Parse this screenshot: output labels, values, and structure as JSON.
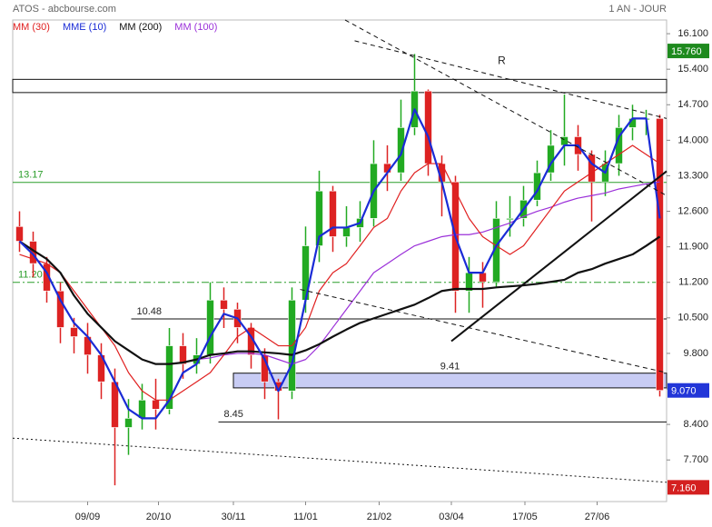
{
  "chart_data": {
    "type": "candlestick",
    "title": "ATOS - abcbourse.com",
    "subtitle": "1 AN - JOUR",
    "xlim": [
      -0.5,
      47.5
    ],
    "xticks": [
      {
        "value": 5,
        "label": "09/09"
      },
      {
        "value": 10.2,
        "label": "20/10"
      },
      {
        "value": 15.7,
        "label": "30/11"
      },
      {
        "value": 21,
        "label": "11/01"
      },
      {
        "value": 26.4,
        "label": "21/02"
      },
      {
        "value": 31.7,
        "label": "03/04"
      },
      {
        "value": 37.1,
        "label": "17/05"
      },
      {
        "value": 42.4,
        "label": "27/06"
      }
    ],
    "ylim": [
      6.88,
      16.37
    ],
    "yticks": [
      {
        "value": 16.1,
        "label": "16.100"
      },
      {
        "value": 15.4,
        "label": "15.400"
      },
      {
        "value": 14.7,
        "label": "14.700"
      },
      {
        "value": 14,
        "label": "14.000"
      },
      {
        "value": 13.3,
        "label": "13.300"
      },
      {
        "value": 12.6,
        "label": "12.600"
      },
      {
        "value": 11.9,
        "label": "11.900"
      },
      {
        "value": 11.2,
        "label": "11.200"
      },
      {
        "value": 10.5,
        "label": "10.500"
      },
      {
        "value": 9.8,
        "label": "9.800"
      },
      {
        "value": 9.1,
        "label": "9.100"
      },
      {
        "value": 8.4,
        "label": "8.400"
      },
      {
        "value": 7.7,
        "label": "7.700"
      }
    ],
    "up_color": "#22aa22",
    "down_color": "#dd2222",
    "open": [
      12.3,
      12.01,
      11.57,
      11.03,
      10.31,
      10.13,
      9.77,
      9.24,
      8.34,
      8.52,
      8.88,
      8.7,
      9.95,
      9.59,
      9.77,
      10.85,
      10.67,
      10.31,
      9.77,
      9.24,
      9.06,
      10.85,
      11.92,
      13.0,
      12.1,
      12.28,
      12.46,
      13.54,
      13.36,
      14.25,
      14.97,
      13.54,
      13.18,
      11.03,
      11.39,
      11.21,
      12.46,
      12.46,
      12.82,
      13.36,
      13.9,
      14.07,
      13.72,
      13.18,
      13.54,
      14.25,
      14.43,
      14.43
    ],
    "high": [
      12.6,
      12.2,
      11.7,
      11.2,
      10.5,
      10.4,
      10.0,
      9.5,
      8.9,
      9.2,
      9.3,
      10.3,
      10.2,
      10.1,
      11.2,
      11.1,
      10.8,
      10.4,
      9.9,
      9.3,
      11.1,
      12.3,
      13.4,
      13.1,
      12.7,
      12.8,
      14.0,
      13.9,
      14.8,
      15.7,
      15.0,
      13.7,
      13.3,
      11.7,
      11.6,
      12.8,
      12.9,
      13.1,
      13.6,
      14.2,
      14.9,
      14.3,
      13.8,
      13.8,
      14.5,
      14.7,
      14.6,
      14.5
    ],
    "low": [
      11.8,
      11.3,
      10.8,
      10.0,
      9.8,
      9.4,
      8.9,
      7.2,
      7.8,
      8.3,
      8.3,
      8.6,
      9.3,
      9.4,
      9.6,
      10.3,
      10.0,
      9.5,
      8.9,
      8.5,
      8.9,
      10.6,
      11.6,
      11.8,
      11.9,
      12.0,
      12.3,
      13.0,
      13.2,
      14.1,
      13.3,
      12.5,
      10.6,
      10.6,
      10.7,
      11.1,
      12.1,
      12.3,
      12.7,
      13.2,
      13.5,
      13.4,
      12.4,
      12.9,
      13.3,
      14.0,
      14.1,
      8.95
    ],
    "close": [
      12.01,
      11.57,
      11.03,
      10.31,
      10.13,
      9.77,
      9.24,
      8.34,
      8.52,
      8.88,
      8.7,
      9.95,
      9.59,
      9.77,
      10.85,
      10.67,
      10.31,
      9.77,
      9.24,
      9.06,
      10.85,
      11.92,
      13.0,
      12.1,
      12.28,
      12.46,
      13.54,
      13.36,
      14.25,
      14.97,
      13.54,
      13.18,
      11.03,
      11.39,
      11.21,
      12.46,
      12.46,
      12.82,
      13.36,
      13.9,
      14.07,
      13.72,
      13.18,
      13.54,
      14.25,
      14.43,
      14.43,
      9.07
    ],
    "series": [
      {
        "name": "MM (30)",
        "color": "#e02020",
        "width": 1.2,
        "values": [
          11.75,
          11.66,
          11.57,
          11.39,
          11.03,
          10.67,
          10.31,
          9.95,
          9.42,
          9.06,
          8.88,
          8.88,
          9.06,
          9.24,
          9.42,
          9.77,
          10.13,
          10.31,
          10.13,
          9.95,
          9.95,
          10.31,
          11.03,
          11.39,
          11.57,
          11.92,
          12.28,
          12.46,
          13.0,
          13.36,
          13.54,
          13.54,
          13.0,
          12.46,
          12.1,
          11.92,
          11.75,
          11.92,
          12.28,
          12.64,
          13.0,
          13.18,
          13.36,
          13.54,
          13.72,
          13.9,
          13.72,
          13.54
        ]
      },
      {
        "name": "MME (10)",
        "color": "#1a2bd6",
        "width": 2.2,
        "values": [
          12.01,
          11.75,
          11.39,
          10.85,
          10.4,
          10.13,
          9.77,
          9.24,
          8.7,
          8.52,
          8.52,
          8.88,
          9.42,
          9.59,
          10.13,
          10.58,
          10.49,
          10.13,
          9.68,
          9.06,
          9.59,
          10.85,
          12.1,
          12.28,
          12.28,
          12.37,
          13.0,
          13.36,
          13.72,
          14.61,
          14.07,
          13.18,
          12.1,
          11.39,
          11.39,
          11.92,
          12.28,
          12.64,
          13.0,
          13.54,
          13.9,
          13.9,
          13.54,
          13.36,
          14.07,
          14.43,
          14.43,
          12.46
        ]
      },
      {
        "name": "MM (200)",
        "color": "#111111",
        "width": 2.2,
        "values": [
          12.01,
          11.83,
          11.66,
          11.39,
          10.94,
          10.58,
          10.31,
          10.04,
          9.86,
          9.68,
          9.59,
          9.59,
          9.62,
          9.68,
          9.77,
          9.8,
          9.84,
          9.84,
          9.82,
          9.8,
          9.77,
          9.86,
          9.98,
          10.13,
          10.27,
          10.4,
          10.49,
          10.58,
          10.67,
          10.76,
          10.89,
          11.03,
          11.07,
          11.07,
          11.07,
          11.1,
          11.12,
          11.14,
          11.17,
          11.21,
          11.25,
          11.39,
          11.46,
          11.57,
          11.66,
          11.75,
          11.92,
          12.1
        ]
      },
      {
        "name": "MM (100)",
        "color": "#9b30d9",
        "width": 1.2,
        "values": [
          12.01,
          11.83,
          11.66,
          11.39,
          10.94,
          10.58,
          10.31,
          10.04,
          9.86,
          9.68,
          9.59,
          9.59,
          9.62,
          9.68,
          9.71,
          9.77,
          9.8,
          9.8,
          9.77,
          9.68,
          9.59,
          9.68,
          9.95,
          10.31,
          10.67,
          11.03,
          11.39,
          11.57,
          11.75,
          11.92,
          12.01,
          12.1,
          12.14,
          12.14,
          12.19,
          12.28,
          12.37,
          12.5,
          12.6,
          12.68,
          12.78,
          12.86,
          12.91,
          12.96,
          13.04,
          13.09,
          13.14,
          13.18
        ]
      }
    ],
    "levels": [
      {
        "value": 13.17,
        "label": "13.17",
        "color": "#2a9d2a",
        "style": "solid",
        "from": -0.5
      },
      {
        "value": 11.2,
        "label": "11.20",
        "color": "#2a9d2a",
        "style": "dashdot",
        "from": -0.5
      },
      {
        "value": 10.48,
        "label": "10.48",
        "color": "#111111",
        "style": "solid",
        "from": 8.2
      },
      {
        "value": 8.45,
        "label": "8.45",
        "color": "#111111",
        "style": "solid",
        "from": 14.6
      }
    ],
    "zones": [
      {
        "from": -0.5,
        "low": 14.94,
        "high": 15.2,
        "color": "#ffffff"
      },
      {
        "from": 15.7,
        "low": 9.12,
        "high": 9.41,
        "label": "9.41",
        "color": "#c8ccf4"
      }
    ],
    "trendlines": [
      {
        "from": [
          23.9,
          16.44
        ],
        "to": [
          47.5,
          12.91
        ],
        "style": "dashed"
      },
      {
        "from": [
          24.6,
          15.96
        ],
        "to": [
          47.5,
          14.43
        ],
        "style": "dashed"
      },
      {
        "from": [
          31.7,
          10.04
        ],
        "to": [
          47.5,
          13.39
        ],
        "style": "solid"
      },
      {
        "from": [
          20.6,
          11.06
        ],
        "to": [
          47.5,
          9.42
        ],
        "style": "dashed"
      },
      {
        "from": [
          -0.5,
          8.13
        ],
        "to": [
          47.5,
          7.26
        ],
        "style": "dotted"
      }
    ],
    "annotations": [
      {
        "text": "R",
        "x": 35.4,
        "y": 15.56
      }
    ],
    "price_tags": [
      {
        "value": 15.76,
        "label": "15.760",
        "color": "#1e8a1e",
        "text_color": "#ffffff"
      },
      {
        "value": 9.07,
        "label": "9.070",
        "color": "#2236d8",
        "text_color": "#ffffff"
      },
      {
        "value": 7.16,
        "label": "7.160",
        "color": "#d42020",
        "text_color": "#ffffff"
      }
    ]
  }
}
